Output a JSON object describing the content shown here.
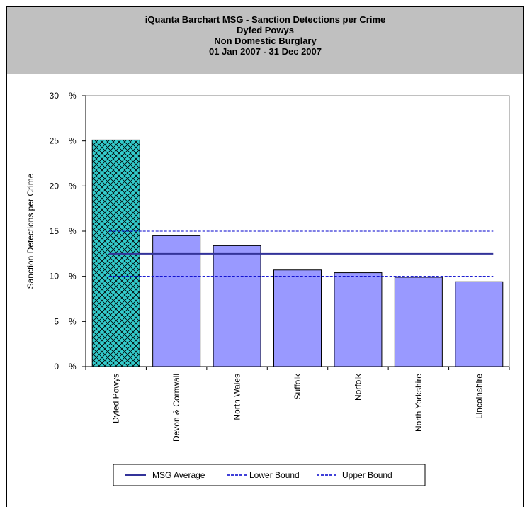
{
  "header": {
    "lines": [
      "iQuanta Barchart MSG - Sanction Detections per Crime",
      "Dyfed Powys",
      "Non Domestic Burglary",
      "01 Jan 2007 - 31 Dec 2007"
    ]
  },
  "chart_data": {
    "type": "bar",
    "title": "iQuanta Barchart MSG - Sanction Detections per Crime",
    "subtitle": "Dyfed Powys / Non Domestic Burglary / 01 Jan 2007 - 31 Dec 2007",
    "ylabel": "Sanction Detections per Crime",
    "xlabel": "",
    "ylim": [
      0,
      30
    ],
    "yticks": [
      0,
      5,
      10,
      15,
      20,
      25,
      30
    ],
    "ytick_suffix": "%",
    "grid": false,
    "categories": [
      "Dyfed Powys",
      "Devon & Cornwall",
      "North Wales",
      "Suffolk",
      "Norfolk",
      "North Yorkshire",
      "Lincolnshire"
    ],
    "values": [
      25.1,
      14.5,
      13.4,
      10.7,
      10.4,
      9.9,
      9.4
    ],
    "highlight_index": 0,
    "colors": {
      "bar": "#9999ff",
      "highlight_fill": "#33cccc",
      "highlight_hatch": "#000000",
      "average": "#333399",
      "bounds": "#0000cc"
    },
    "reference_lines": [
      {
        "name": "MSG Average",
        "value": 12.5,
        "style": "solid"
      },
      {
        "name": "Lower Bound",
        "value": 10.0,
        "style": "dashed"
      },
      {
        "name": "Upper Bound",
        "value": 15.0,
        "style": "dashed"
      }
    ],
    "legend": {
      "placement": "bottom",
      "entries": [
        "MSG Average",
        "Lower Bound",
        "Upper Bound"
      ]
    }
  }
}
